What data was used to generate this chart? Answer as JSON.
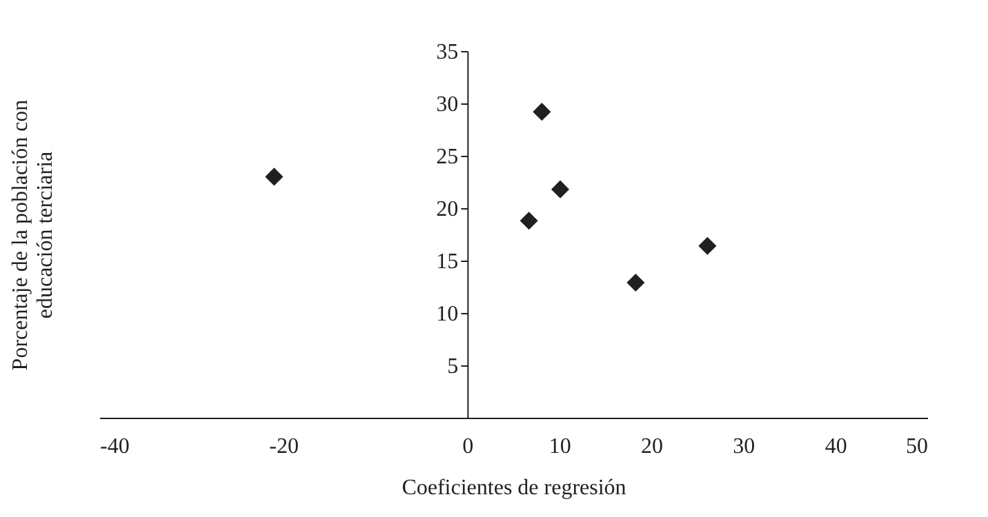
{
  "chart_data": {
    "type": "scatter",
    "xlabel": "Coeficientes de regresión",
    "ylabel": "Porcentaje de la población con\neducación terciaria",
    "x": [
      -21,
      8.1,
      10.1,
      6.7,
      18.3,
      26.1
    ],
    "series": [
      {
        "color": "#231f20",
        "values": [
          23,
          29.2,
          21.8,
          18.8,
          12.9,
          16.4
        ]
      }
    ],
    "xlim": [
      -40,
      50
    ],
    "xticks": [
      -40,
      -20,
      0,
      10,
      20,
      30,
      40,
      50
    ],
    "ylim": [
      0,
      35
    ],
    "yticks": [
      5,
      10,
      15,
      20,
      25,
      30,
      35
    ],
    "marker": "diamond",
    "grid": false
  }
}
